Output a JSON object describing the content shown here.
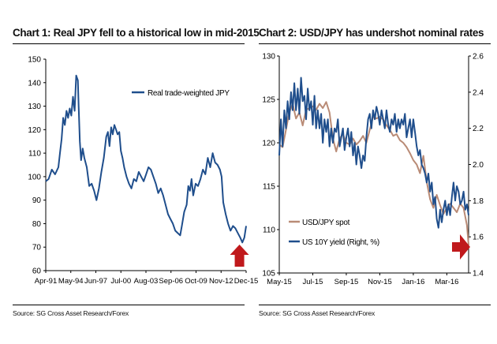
{
  "charts": [
    {
      "title": "Chart 1: Real JPY fell to a historical low in mid-2015",
      "source": "Source: SG Cross Asset Research/Forex"
    },
    {
      "title": "Chart 2: USD/JPY has undershot nominal rates",
      "source": "Source: SG Cross Asset Research/Forex"
    }
  ],
  "colors": {
    "series_blue": "#1f4e8c",
    "series_brown": "#b98b76",
    "arrow_red": "#c0191c",
    "axis": "#000000"
  },
  "chart_data": [
    {
      "type": "line",
      "title": "Chart 1: Real JPY fell to a historical low in mid-2015",
      "xlabel": "",
      "ylabel": "",
      "x_ticks": [
        "Apr-91",
        "May-94",
        "Jun-97",
        "Jul-00",
        "Aug-03",
        "Sep-06",
        "Oct-09",
        "Nov-12",
        "Dec-15"
      ],
      "y_ticks": [
        60,
        70,
        80,
        90,
        100,
        110,
        120,
        130,
        140,
        150
      ],
      "ylim": [
        60,
        150
      ],
      "x_years": [
        1991.25,
        2015.92
      ],
      "grid": false,
      "legend_position": "top-right",
      "annotation": "red up-arrow pointing at the mid-2015 low",
      "series": [
        {
          "name": "Real trade-weighted  JPY",
          "color": "#1f4e8c",
          "x": [
            1991.25,
            1991.6,
            1992.0,
            1992.4,
            1992.8,
            1993.0,
            1993.2,
            1993.4,
            1993.6,
            1993.8,
            1994.0,
            1994.2,
            1994.4,
            1994.6,
            1994.8,
            1995.0,
            1995.2,
            1995.3,
            1995.45,
            1995.6,
            1995.8,
            1996.0,
            1996.3,
            1996.6,
            1996.9,
            1997.2,
            1997.5,
            1997.8,
            1998.1,
            1998.4,
            1998.7,
            1998.9,
            1999.1,
            1999.3,
            1999.5,
            1999.7,
            1999.9,
            2000.1,
            2000.3,
            2000.5,
            2000.7,
            2000.9,
            2001.2,
            2001.5,
            2001.8,
            2002.1,
            2002.4,
            2002.7,
            2003.0,
            2003.3,
            2003.6,
            2003.9,
            2004.2,
            2004.5,
            2004.8,
            2005.1,
            2005.4,
            2005.7,
            2006.0,
            2006.3,
            2006.6,
            2006.9,
            2007.2,
            2007.5,
            2007.8,
            2008.0,
            2008.3,
            2008.6,
            2008.8,
            2009.0,
            2009.2,
            2009.4,
            2009.7,
            2010.0,
            2010.3,
            2010.6,
            2010.9,
            2011.2,
            2011.5,
            2011.8,
            2012.1,
            2012.4,
            2012.7,
            2012.9,
            2013.1,
            2013.4,
            2013.7,
            2014.0,
            2014.3,
            2014.6,
            2014.9,
            2015.2,
            2015.45,
            2015.7,
            2015.92
          ],
          "values": [
            98,
            99,
            103,
            101,
            104,
            110,
            116,
            125,
            122,
            128,
            125,
            129,
            126,
            134,
            128,
            143,
            141,
            130,
            115,
            107,
            112,
            108,
            104,
            96,
            97,
            94,
            90,
            95,
            102,
            108,
            117,
            119,
            113,
            121,
            118,
            122,
            120,
            118,
            119,
            111,
            108,
            104,
            100,
            97,
            95,
            99,
            98,
            102,
            100,
            98,
            101,
            104,
            103,
            100,
            97,
            93,
            95,
            92,
            88,
            84,
            82,
            80,
            77,
            76,
            75,
            79,
            85,
            88,
            96,
            94,
            99,
            92,
            97,
            96,
            99,
            103,
            101,
            108,
            104,
            110,
            106,
            105,
            103,
            100,
            89,
            84,
            80,
            77,
            79,
            78,
            76,
            74,
            72,
            74,
            79
          ]
        }
      ]
    },
    {
      "type": "line",
      "title": "Chart 2: USD/JPY has undershot nominal rates",
      "xlabel": "",
      "ylabel": "",
      "x_ticks": [
        "May-15",
        "Jul-15",
        "Sep-15",
        "Nov-15",
        "Jan-16",
        "Mar-16"
      ],
      "x_months": [
        5,
        16.3
      ],
      "y_left_ticks": [
        105,
        110,
        115,
        120,
        125,
        130
      ],
      "y_left_lim": [
        105,
        130
      ],
      "y_right_ticks": [
        1.4,
        1.6,
        1.8,
        2.0,
        2.2,
        2.4,
        2.6
      ],
      "y_right_lim": [
        1.4,
        2.6
      ],
      "grid": false,
      "legend_position": "bottom-left",
      "annotation": "red right-arrow pointing at the latest USD/JPY drop",
      "series": [
        {
          "name": "USD/JPY spot",
          "axis": "left",
          "color": "#b98b76",
          "x": [
            5.0,
            5.2,
            5.4,
            5.6,
            5.8,
            6.0,
            6.2,
            6.4,
            6.6,
            6.8,
            7.0,
            7.2,
            7.4,
            7.6,
            7.8,
            8.0,
            8.2,
            8.4,
            8.6,
            8.8,
            9.0,
            9.2,
            9.4,
            9.6,
            9.8,
            10.0,
            10.2,
            10.4,
            10.6,
            10.8,
            11.0,
            11.2,
            11.4,
            11.6,
            11.8,
            12.0,
            12.2,
            12.4,
            12.6,
            12.8,
            13.0,
            13.2,
            13.4,
            13.6,
            13.8,
            14.0,
            14.2,
            14.4,
            14.6,
            14.8,
            15.0,
            15.2,
            15.4,
            15.6,
            15.8,
            16.0,
            16.2,
            16.3
          ],
          "values": [
            119.8,
            119.5,
            121.5,
            123.5,
            124.5,
            122.8,
            123.5,
            122.0,
            123.8,
            124.0,
            124.2,
            123.8,
            124.5,
            124.0,
            124.7,
            123.5,
            120.5,
            119.0,
            120.5,
            121.0,
            120.0,
            119.8,
            120.5,
            119.8,
            120.2,
            120.8,
            120.0,
            121.5,
            123.0,
            122.8,
            123.0,
            122.7,
            122.0,
            121.5,
            120.8,
            121.0,
            120.3,
            120.0,
            119.5,
            118.8,
            118.0,
            117.5,
            116.5,
            118.5,
            115.5,
            113.5,
            112.5,
            114.0,
            112.8,
            111.8,
            112.5,
            113.0,
            112.5,
            112.0,
            113.0,
            112.5,
            110.5,
            108.2
          ]
        },
        {
          "name": "US 10Y yield (Right, %)",
          "axis": "right",
          "color": "#1f4e8c",
          "x": [
            5.0,
            5.1,
            5.2,
            5.3,
            5.4,
            5.5,
            5.6,
            5.7,
            5.8,
            5.9,
            6.0,
            6.1,
            6.2,
            6.3,
            6.4,
            6.5,
            6.6,
            6.7,
            6.8,
            6.9,
            7.0,
            7.1,
            7.2,
            7.3,
            7.4,
            7.5,
            7.6,
            7.7,
            7.8,
            7.9,
            8.0,
            8.1,
            8.2,
            8.3,
            8.4,
            8.5,
            8.6,
            8.7,
            8.8,
            8.9,
            9.0,
            9.1,
            9.2,
            9.3,
            9.4,
            9.5,
            9.6,
            9.7,
            9.8,
            9.9,
            10.0,
            10.1,
            10.2,
            10.3,
            10.4,
            10.5,
            10.6,
            10.7,
            10.8,
            10.9,
            11.0,
            11.1,
            11.2,
            11.3,
            11.4,
            11.5,
            11.6,
            11.7,
            11.8,
            11.9,
            12.0,
            12.1,
            12.2,
            12.3,
            12.4,
            12.5,
            12.6,
            12.7,
            12.8,
            12.9,
            13.0,
            13.1,
            13.2,
            13.3,
            13.4,
            13.5,
            13.6,
            13.7,
            13.8,
            13.9,
            14.0,
            14.1,
            14.2,
            14.3,
            14.4,
            14.5,
            14.6,
            14.7,
            14.8,
            14.9,
            15.0,
            15.1,
            15.2,
            15.3,
            15.4,
            15.5,
            15.6,
            15.7,
            15.8,
            15.9,
            16.0,
            16.1,
            16.2,
            16.3
          ],
          "values": [
            2.05,
            2.25,
            2.1,
            2.3,
            2.2,
            2.35,
            2.25,
            2.4,
            2.3,
            2.45,
            2.3,
            2.42,
            2.28,
            2.48,
            2.35,
            2.38,
            2.25,
            2.42,
            2.3,
            2.35,
            2.22,
            2.38,
            2.2,
            2.3,
            2.2,
            2.28,
            2.12,
            2.25,
            2.18,
            2.25,
            2.1,
            2.2,
            2.12,
            2.2,
            2.18,
            2.25,
            2.1,
            2.15,
            2.2,
            2.08,
            2.15,
            2.2,
            2.1,
            2.18,
            2.05,
            2.12,
            2.0,
            2.1,
            2.05,
            1.98,
            2.05,
            2.02,
            2.15,
            2.25,
            2.28,
            2.2,
            2.3,
            2.25,
            2.32,
            2.28,
            2.22,
            2.3,
            2.25,
            2.2,
            2.3,
            2.22,
            2.18,
            2.25,
            2.22,
            2.28,
            2.18,
            2.25,
            2.2,
            2.25,
            2.22,
            2.28,
            2.15,
            2.2,
            2.25,
            2.15,
            2.25,
            2.18,
            2.1,
            2.05,
            2.08,
            2.0,
            1.98,
            1.95,
            1.9,
            1.95,
            1.85,
            1.9,
            1.78,
            1.82,
            1.7,
            1.65,
            1.75,
            1.68,
            1.75,
            1.8,
            1.72,
            1.78,
            1.72,
            1.82,
            1.9,
            1.8,
            1.88,
            1.85,
            1.78,
            1.8,
            1.85,
            1.75,
            1.78,
            1.72
          ]
        }
      ]
    }
  ]
}
